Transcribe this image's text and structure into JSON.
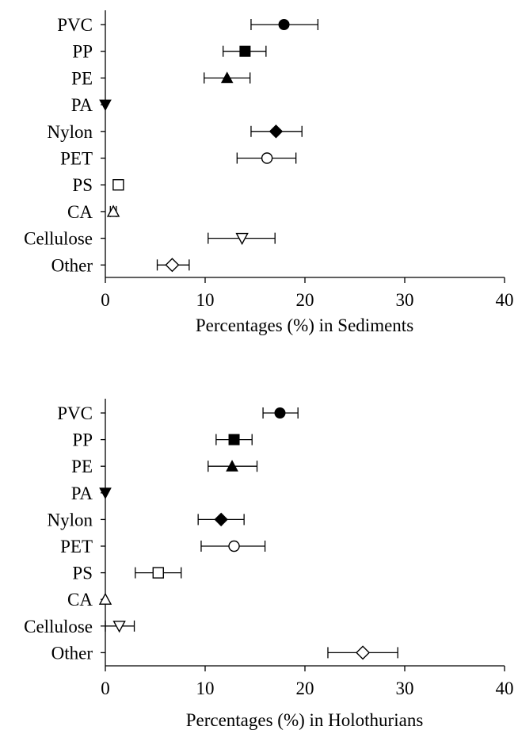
{
  "chart_data": [
    {
      "type": "scatter",
      "title": "",
      "xlabel": "Percentages (%) in Sediments",
      "ylabel": "",
      "xlim": [
        0,
        40
      ],
      "xticks": [
        "0",
        "10",
        "20",
        "30",
        "40"
      ],
      "categories": [
        "PVC",
        "PP",
        "PE",
        "PA",
        "Nylon",
        "PET",
        "PS",
        "CA",
        "Cellulose",
        "Other"
      ],
      "values": [
        17.9,
        14.0,
        12.2,
        0.0,
        17.1,
        16.2,
        1.3,
        0.8,
        13.7,
        6.7
      ],
      "error_low": [
        14.6,
        11.8,
        9.9,
        0.0,
        14.6,
        13.2,
        1.0,
        0.5,
        10.3,
        5.2
      ],
      "error_high": [
        21.3,
        16.1,
        14.5,
        0.0,
        19.7,
        19.1,
        1.6,
        1.1,
        17.0,
        8.4
      ],
      "markers": [
        "filled-circle",
        "filled-square",
        "filled-triangle-up",
        "filled-triangle-down",
        "filled-diamond",
        "open-circle",
        "open-square",
        "open-triangle-up",
        "open-triangle-down",
        "open-diamond"
      ],
      "grid": false
    },
    {
      "type": "scatter",
      "title": "",
      "xlabel": "Percentages (%) in Holothurians",
      "ylabel": "",
      "xlim": [
        0,
        40
      ],
      "xticks": [
        "0",
        "10",
        "20",
        "30",
        "40"
      ],
      "categories": [
        "PVC",
        "PP",
        "PE",
        "PA",
        "Nylon",
        "PET",
        "PS",
        "CA",
        "Cellulose",
        "Other"
      ],
      "values": [
        17.5,
        12.9,
        12.7,
        0.0,
        11.6,
        12.9,
        5.3,
        0.0,
        1.4,
        25.8
      ],
      "error_low": [
        15.8,
        11.1,
        10.3,
        0.0,
        9.3,
        9.6,
        3.0,
        0.0,
        0.0,
        22.3
      ],
      "error_high": [
        19.3,
        14.7,
        15.2,
        0.0,
        13.9,
        16.0,
        7.6,
        0.0,
        2.9,
        29.3
      ],
      "markers": [
        "filled-circle",
        "filled-square",
        "filled-triangle-up",
        "filled-triangle-down",
        "filled-diamond",
        "open-circle",
        "open-square",
        "open-triangle-up",
        "open-triangle-down",
        "open-diamond"
      ],
      "grid": false
    }
  ]
}
